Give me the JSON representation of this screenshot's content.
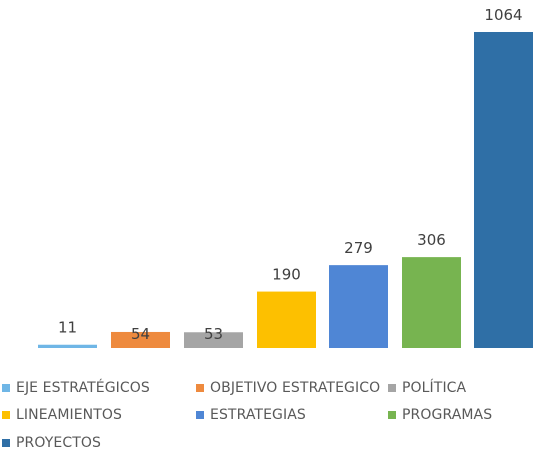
{
  "chart_data": {
    "type": "bar",
    "categories": [
      "EJE ESTRATÉGICOS",
      "OBJETIVO ESTRATEGICO",
      "POLÍTICA",
      "LINEAMIENTOS",
      "ESTRATEGIAS",
      "PROGRAMAS",
      "PROYECTOS"
    ],
    "values": [
      11,
      54,
      53,
      190,
      279,
      306,
      1064
    ],
    "data_labels": [
      "11",
      "54",
      "53",
      "190",
      "279",
      "306",
      "1064"
    ],
    "colors": [
      "#6FB6E6",
      "#EE8A3E",
      "#A5A5A5",
      "#FDC000",
      "#4F86D5",
      "#77B450",
      "#2F6FA6"
    ],
    "title": "",
    "xlabel": "",
    "ylabel": "",
    "ylim": [
      0,
      1064
    ],
    "grid": false,
    "legend_position": "bottom"
  }
}
